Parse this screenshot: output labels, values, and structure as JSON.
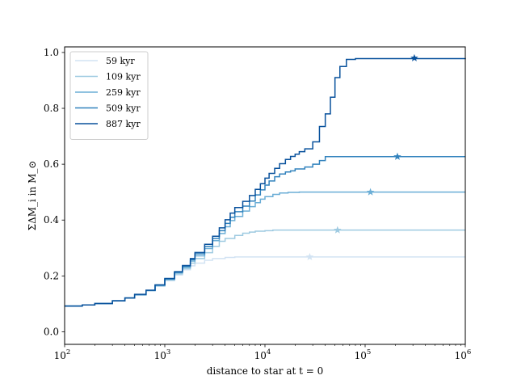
{
  "chart_data": {
    "type": "line",
    "xscale": "log",
    "xlim": [
      100,
      1000000
    ],
    "ylim": [
      -0.045,
      1.02
    ],
    "xlabel": "distance to star at t = 0",
    "ylabel": "ΣΔM_i in M_⊙",
    "x_ticks": [
      {
        "value": 100,
        "label": "10^2"
      },
      {
        "value": 1000,
        "label": "10^3"
      },
      {
        "value": 10000,
        "label": "10^4"
      },
      {
        "value": 100000,
        "label": "10^5"
      },
      {
        "value": 1000000,
        "label": "10^6"
      }
    ],
    "y_ticks": [
      {
        "value": 0.0,
        "label": "0.0"
      },
      {
        "value": 0.2,
        "label": "0.2"
      },
      {
        "value": 0.4,
        "label": "0.4"
      },
      {
        "value": 0.6,
        "label": "0.6"
      },
      {
        "value": 0.8,
        "label": "0.8"
      },
      {
        "value": 1.0,
        "label": "1.0"
      }
    ],
    "grid": false,
    "legend_position": "top-left",
    "step": "post",
    "series": [
      {
        "name": "59 kyr",
        "color": "#d2e3f3",
        "points": [
          [
            100,
            0.092
          ],
          [
            150,
            0.096
          ],
          [
            200,
            0.101
          ],
          [
            300,
            0.111
          ],
          [
            400,
            0.121
          ],
          [
            500,
            0.131
          ],
          [
            650,
            0.146
          ],
          [
            800,
            0.163
          ],
          [
            1000,
            0.183
          ],
          [
            1250,
            0.203
          ],
          [
            1500,
            0.222
          ],
          [
            1800,
            0.236
          ],
          [
            2000,
            0.246
          ],
          [
            2500,
            0.256
          ],
          [
            3000,
            0.262
          ],
          [
            4000,
            0.266
          ],
          [
            5000,
            0.268
          ],
          [
            10000,
            0.268
          ],
          [
            100000,
            0.268
          ],
          [
            1000000,
            0.268
          ]
        ],
        "marker": [
          28000,
          0.268
        ]
      },
      {
        "name": "109 kyr",
        "color": "#9ecae1",
        "points": [
          [
            100,
            0.092
          ],
          [
            150,
            0.096
          ],
          [
            200,
            0.101
          ],
          [
            300,
            0.111
          ],
          [
            400,
            0.121
          ],
          [
            500,
            0.132
          ],
          [
            650,
            0.147
          ],
          [
            800,
            0.164
          ],
          [
            1000,
            0.185
          ],
          [
            1250,
            0.207
          ],
          [
            1500,
            0.226
          ],
          [
            1800,
            0.246
          ],
          [
            2000,
            0.262
          ],
          [
            2500,
            0.283
          ],
          [
            3000,
            0.306
          ],
          [
            3500,
            0.324
          ],
          [
            4000,
            0.334
          ],
          [
            5000,
            0.345
          ],
          [
            6000,
            0.353
          ],
          [
            7000,
            0.357
          ],
          [
            8000,
            0.36
          ],
          [
            10000,
            0.362
          ],
          [
            12000,
            0.364
          ],
          [
            20000,
            0.364
          ],
          [
            1000000,
            0.364
          ]
        ],
        "marker": [
          53000,
          0.364
        ]
      },
      {
        "name": "259 kyr",
        "color": "#6baed6",
        "points": [
          [
            100,
            0.092
          ],
          [
            150,
            0.096
          ],
          [
            200,
            0.101
          ],
          [
            300,
            0.111
          ],
          [
            400,
            0.121
          ],
          [
            500,
            0.133
          ],
          [
            650,
            0.148
          ],
          [
            800,
            0.166
          ],
          [
            1000,
            0.188
          ],
          [
            1250,
            0.211
          ],
          [
            1500,
            0.231
          ],
          [
            1800,
            0.253
          ],
          [
            2000,
            0.272
          ],
          [
            2500,
            0.298
          ],
          [
            3000,
            0.326
          ],
          [
            3500,
            0.352
          ],
          [
            4000,
            0.376
          ],
          [
            4500,
            0.398
          ],
          [
            5000,
            0.413
          ],
          [
            6000,
            0.432
          ],
          [
            7000,
            0.448
          ],
          [
            8000,
            0.462
          ],
          [
            9000,
            0.475
          ],
          [
            10000,
            0.484
          ],
          [
            12000,
            0.492
          ],
          [
            14000,
            0.497
          ],
          [
            17000,
            0.499
          ],
          [
            22000,
            0.5
          ],
          [
            1000000,
            0.5
          ]
        ],
        "marker": [
          113000,
          0.5
        ]
      },
      {
        "name": "509 kyr",
        "color": "#3182bd",
        "points": [
          [
            100,
            0.092
          ],
          [
            150,
            0.096
          ],
          [
            200,
            0.101
          ],
          [
            300,
            0.111
          ],
          [
            400,
            0.121
          ],
          [
            500,
            0.133
          ],
          [
            650,
            0.148
          ],
          [
            800,
            0.167
          ],
          [
            1000,
            0.189
          ],
          [
            1250,
            0.213
          ],
          [
            1500,
            0.234
          ],
          [
            1800,
            0.258
          ],
          [
            2000,
            0.279
          ],
          [
            2500,
            0.306
          ],
          [
            3000,
            0.334
          ],
          [
            3500,
            0.362
          ],
          [
            4000,
            0.388
          ],
          [
            4500,
            0.41
          ],
          [
            5000,
            0.43
          ],
          [
            6000,
            0.45
          ],
          [
            7000,
            0.468
          ],
          [
            8000,
            0.49
          ],
          [
            9000,
            0.508
          ],
          [
            10000,
            0.525
          ],
          [
            11000,
            0.54
          ],
          [
            12500,
            0.555
          ],
          [
            14000,
            0.565
          ],
          [
            16000,
            0.572
          ],
          [
            18000,
            0.576
          ],
          [
            20000,
            0.583
          ],
          [
            25000,
            0.59
          ],
          [
            30000,
            0.6
          ],
          [
            35000,
            0.613
          ],
          [
            40000,
            0.627
          ],
          [
            1000000,
            0.627
          ]
        ],
        "marker": [
          210000,
          0.627
        ]
      },
      {
        "name": "887 kyr",
        "color": "#08519c",
        "points": [
          [
            100,
            0.092
          ],
          [
            150,
            0.096
          ],
          [
            200,
            0.101
          ],
          [
            300,
            0.111
          ],
          [
            400,
            0.121
          ],
          [
            500,
            0.134
          ],
          [
            650,
            0.149
          ],
          [
            800,
            0.168
          ],
          [
            1000,
            0.191
          ],
          [
            1250,
            0.215
          ],
          [
            1500,
            0.237
          ],
          [
            1800,
            0.262
          ],
          [
            2000,
            0.284
          ],
          [
            2500,
            0.313
          ],
          [
            3000,
            0.342
          ],
          [
            3500,
            0.372
          ],
          [
            4000,
            0.401
          ],
          [
            4500,
            0.425
          ],
          [
            5000,
            0.445
          ],
          [
            6000,
            0.467
          ],
          [
            7000,
            0.488
          ],
          [
            8000,
            0.51
          ],
          [
            9000,
            0.53
          ],
          [
            10000,
            0.55
          ],
          [
            11000,
            0.567
          ],
          [
            12500,
            0.585
          ],
          [
            14000,
            0.602
          ],
          [
            16000,
            0.617
          ],
          [
            18000,
            0.628
          ],
          [
            20000,
            0.636
          ],
          [
            22000,
            0.645
          ],
          [
            25000,
            0.655
          ],
          [
            30000,
            0.68
          ],
          [
            35000,
            0.735
          ],
          [
            40000,
            0.78
          ],
          [
            45000,
            0.84
          ],
          [
            50000,
            0.91
          ],
          [
            56000,
            0.95
          ],
          [
            65000,
            0.975
          ],
          [
            80000,
            0.978
          ],
          [
            1000000,
            0.98
          ]
        ],
        "marker": [
          310000,
          0.98
        ]
      }
    ]
  }
}
